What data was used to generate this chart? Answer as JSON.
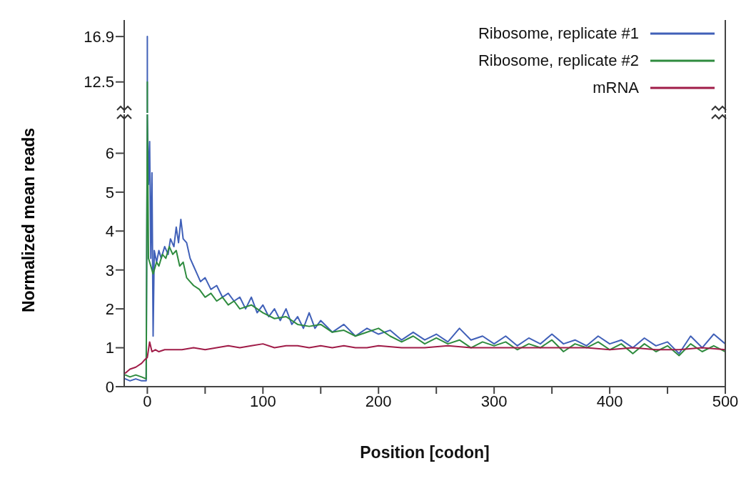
{
  "chart_data": [
    {
      "type": "line",
      "xlim": [
        -20,
        500
      ],
      "ylim": [
        9.5,
        18.5
      ],
      "yticks": [
        12.5,
        16.9
      ],
      "tick_labels": "y",
      "series": [
        {
          "color": "#4060b8",
          "x": [
            0,
            0
          ],
          "values": [
            9.5,
            16.9
          ]
        },
        {
          "color": "#2e8b3e",
          "x": [
            0,
            0
          ],
          "values": [
            9.5,
            12.5
          ]
        }
      ]
    },
    {
      "type": "line",
      "xlabel": "Position [codon]",
      "ylabel": "Normalized mean reads",
      "xlim": [
        -20,
        500
      ],
      "ylim": [
        0,
        7
      ],
      "yticks": [
        0,
        1,
        2,
        3,
        4,
        5,
        6
      ],
      "xticks": [
        0,
        {
          "value": 50,
          "label": null
        },
        100,
        {
          "value": 150,
          "label": null
        },
        200,
        {
          "value": 250,
          "label": null
        },
        300,
        {
          "value": 350,
          "label": null
        },
        400,
        {
          "value": 450,
          "label": null
        },
        500
      ],
      "legend": "top right",
      "grid": false,
      "marker": "none",
      "line_style": "solid",
      "series": [
        {
          "name": "Ribosome, replicate #1",
          "color": "#4060b8",
          "x": [
            -19,
            -15,
            -10,
            -5,
            -1,
            0,
            1,
            2,
            3,
            4,
            5,
            6,
            8,
            10,
            12,
            15,
            18,
            20,
            23,
            25,
            27,
            29,
            31,
            34,
            37,
            40,
            43,
            46,
            50,
            55,
            60,
            65,
            70,
            75,
            80,
            85,
            90,
            95,
            100,
            105,
            110,
            115,
            120,
            125,
            130,
            135,
            140,
            145,
            150,
            160,
            170,
            180,
            190,
            200,
            210,
            220,
            230,
            240,
            250,
            260,
            270,
            280,
            290,
            300,
            310,
            320,
            330,
            340,
            350,
            360,
            370,
            380,
            390,
            400,
            410,
            420,
            430,
            440,
            450,
            460,
            470,
            480,
            490,
            500
          ],
          "values": [
            0.2,
            0.15,
            0.2,
            0.15,
            0.15,
            7,
            5.2,
            6.3,
            3.3,
            5.5,
            1.3,
            3.5,
            3.2,
            3.5,
            3.3,
            3.6,
            3.4,
            3.8,
            3.6,
            4.1,
            3.7,
            4.3,
            3.8,
            3.7,
            3.3,
            3.1,
            2.9,
            2.7,
            2.8,
            2.5,
            2.6,
            2.3,
            2.4,
            2.2,
            2.3,
            2.0,
            2.3,
            1.9,
            2.1,
            1.8,
            2.0,
            1.7,
            2.0,
            1.6,
            1.8,
            1.5,
            1.9,
            1.5,
            1.7,
            1.4,
            1.6,
            1.3,
            1.5,
            1.35,
            1.45,
            1.2,
            1.4,
            1.2,
            1.35,
            1.15,
            1.5,
            1.2,
            1.3,
            1.1,
            1.3,
            1.05,
            1.25,
            1.1,
            1.35,
            1.1,
            1.2,
            1.05,
            1.3,
            1.1,
            1.2,
            1.0,
            1.25,
            1.05,
            1.15,
            0.85,
            1.3,
            1.0,
            1.35,
            1.1
          ]
        },
        {
          "name": "Ribosome, replicate #2",
          "color": "#2e8b3e",
          "x": [
            -19,
            -15,
            -10,
            -5,
            -1,
            0,
            1,
            3,
            5,
            8,
            10,
            13,
            16,
            19,
            22,
            25,
            28,
            31,
            34,
            37,
            40,
            45,
            50,
            55,
            60,
            65,
            70,
            75,
            80,
            90,
            100,
            110,
            120,
            130,
            140,
            150,
            160,
            170,
            180,
            190,
            200,
            210,
            220,
            230,
            240,
            250,
            260,
            270,
            280,
            290,
            300,
            310,
            320,
            330,
            340,
            350,
            360,
            370,
            380,
            390,
            400,
            410,
            420,
            430,
            440,
            450,
            460,
            470,
            480,
            490,
            500
          ],
          "values": [
            0.3,
            0.25,
            0.3,
            0.25,
            0.2,
            7,
            3.3,
            3.1,
            2.9,
            3.2,
            3.1,
            3.4,
            3.3,
            3.6,
            3.4,
            3.5,
            3.1,
            3.2,
            2.8,
            2.7,
            2.6,
            2.5,
            2.3,
            2.4,
            2.2,
            2.3,
            2.1,
            2.2,
            2.0,
            2.1,
            1.9,
            1.75,
            1.8,
            1.6,
            1.55,
            1.6,
            1.4,
            1.45,
            1.3,
            1.4,
            1.5,
            1.3,
            1.15,
            1.3,
            1.1,
            1.25,
            1.1,
            1.2,
            1.0,
            1.15,
            1.05,
            1.15,
            0.95,
            1.1,
            1.0,
            1.2,
            0.9,
            1.1,
            1.0,
            1.15,
            0.95,
            1.1,
            0.85,
            1.1,
            0.9,
            1.05,
            0.8,
            1.1,
            0.9,
            1.05,
            0.9
          ]
        },
        {
          "name": "mRNA",
          "color": "#a01c48",
          "x": [
            -19,
            -15,
            -10,
            -5,
            -2,
            0,
            2,
            4,
            7,
            10,
            15,
            20,
            30,
            40,
            50,
            60,
            70,
            80,
            90,
            100,
            110,
            120,
            130,
            140,
            150,
            160,
            170,
            180,
            190,
            200,
            220,
            240,
            260,
            280,
            300,
            320,
            340,
            360,
            380,
            400,
            420,
            440,
            460,
            480,
            500
          ],
          "values": [
            0.35,
            0.45,
            0.5,
            0.6,
            0.7,
            0.75,
            1.15,
            0.9,
            0.95,
            0.9,
            0.95,
            0.95,
            0.95,
            1.0,
            0.95,
            1.0,
            1.05,
            1.0,
            1.05,
            1.1,
            1.0,
            1.05,
            1.05,
            1.0,
            1.05,
            1.0,
            1.05,
            1.0,
            1.0,
            1.05,
            1.0,
            1.0,
            1.05,
            1.0,
            1.0,
            1.0,
            1.0,
            1.0,
            1.0,
            0.95,
            1.0,
            0.95,
            0.95,
            1.0,
            0.95
          ]
        }
      ]
    }
  ]
}
